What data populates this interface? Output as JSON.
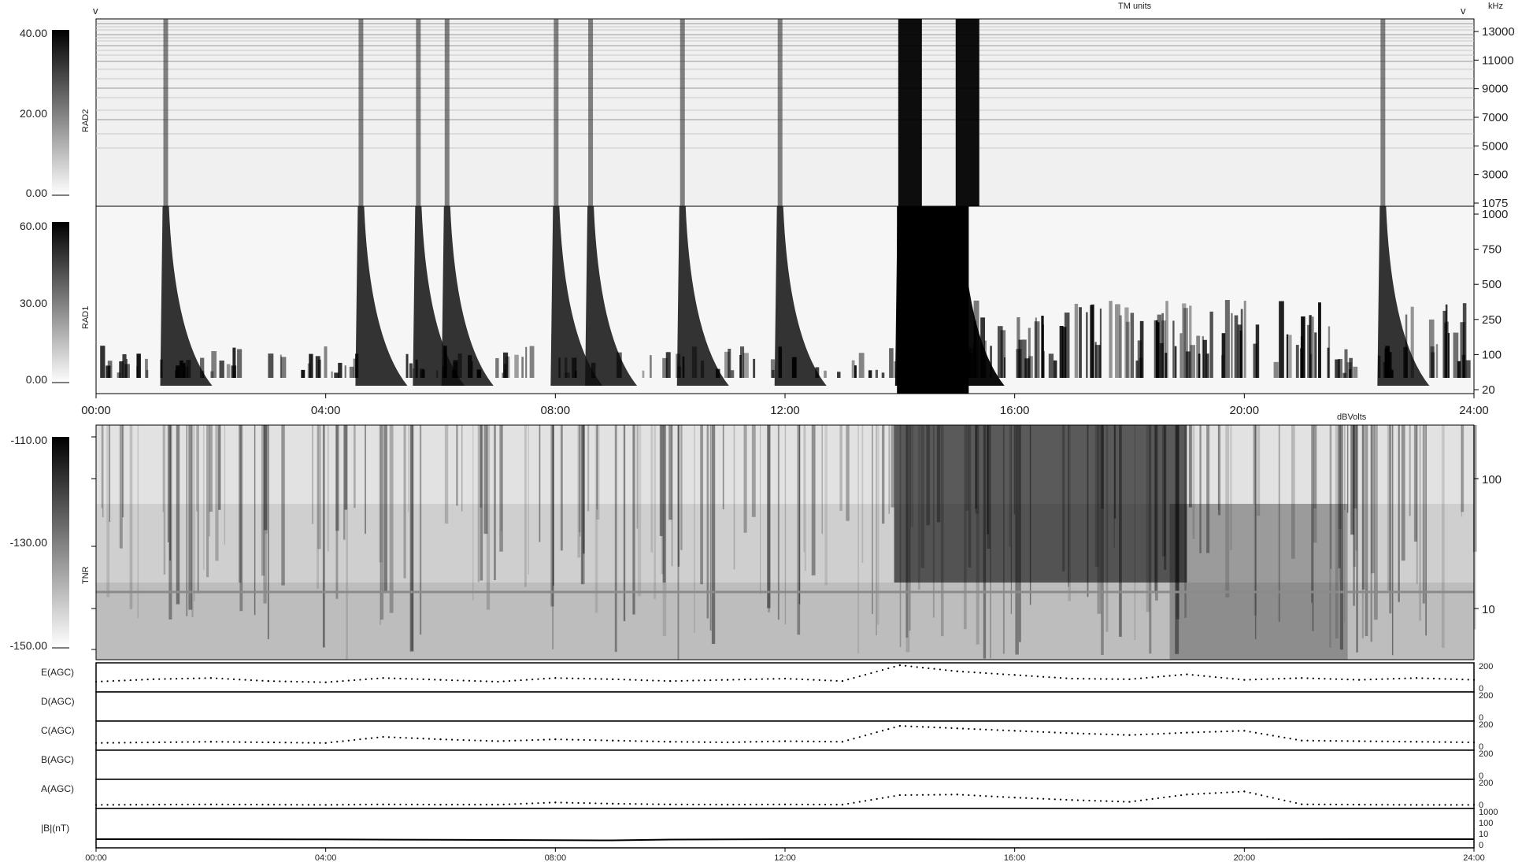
{
  "header": {
    "v_left": "v",
    "v_right": "v",
    "tm_units": "TM units",
    "khz": "kHz",
    "dbvolts": "dBVolts"
  },
  "time_ticks": [
    "00:00",
    "04:00",
    "08:00",
    "12:00",
    "16:00",
    "20:00",
    "24:00"
  ],
  "panels": {
    "rad2": {
      "label": "RAD2",
      "colorbar_ticks": [
        "40.00",
        "20.00",
        "0.00"
      ],
      "freq_ticks": [
        "13000",
        "11000",
        "9000",
        "7000",
        "5000",
        "3000",
        "1075"
      ]
    },
    "rad1": {
      "label": "RAD1",
      "colorbar_ticks": [
        "60.00",
        "30.00",
        "0.00"
      ],
      "freq_ticks": [
        "1000",
        "750",
        "500",
        "250",
        "100",
        "20"
      ]
    },
    "tnr": {
      "label": "TNR",
      "colorbar_ticks": [
        "-110.00",
        "-130.00",
        "-150.00"
      ],
      "freq_ticks": [
        "100",
        "10"
      ]
    }
  },
  "agc": [
    {
      "label": "E(AGC)",
      "ticks": [
        "200",
        "0"
      ]
    },
    {
      "label": "D(AGC)",
      "ticks": [
        "200",
        "0"
      ]
    },
    {
      "label": "C(AGC)",
      "ticks": [
        "200",
        "0"
      ]
    },
    {
      "label": "B(AGC)",
      "ticks": [
        "200",
        "0"
      ]
    },
    {
      "label": "A(AGC)",
      "ticks": [
        "200",
        "0"
      ]
    }
  ],
  "bfield": {
    "label": "|B|(nT)",
    "ticks": [
      "1000",
      "100",
      "10",
      "0"
    ]
  },
  "chart_data": {
    "type": "heatmap",
    "x_range": [
      "00:00",
      "24:00"
    ],
    "type_bursts_hours": [
      1.2,
      4.6,
      5.6,
      6.1,
      8.0,
      8.6,
      10.2,
      11.9,
      14.0,
      15.0,
      22.4
    ],
    "agc_series": [
      {
        "name": "E(AGC)",
        "ylim": [
          0,
          200
        ],
        "hours": [
          0,
          1,
          2,
          3,
          4,
          5,
          6,
          7,
          8,
          9,
          10,
          11,
          12,
          13,
          14,
          15,
          16,
          17,
          18,
          19,
          20,
          21,
          22,
          23,
          24
        ],
        "values": [
          65,
          85,
          95,
          70,
          60,
          95,
          80,
          65,
          95,
          85,
          70,
          80,
          90,
          70,
          200,
          150,
          120,
          90,
          85,
          125,
          80,
          95,
          80,
          95,
          80
        ]
      },
      {
        "name": "D(AGC)",
        "ylim": [
          0,
          200
        ],
        "hours": [],
        "values": []
      },
      {
        "name": "C(AGC)",
        "ylim": [
          0,
          200
        ],
        "hours": [
          0,
          1,
          2,
          3,
          4,
          5,
          6,
          7,
          8,
          9,
          10,
          11,
          12,
          13,
          14,
          15,
          16,
          17,
          18,
          19,
          20,
          21,
          22,
          23,
          24
        ],
        "values": [
          40,
          45,
          50,
          45,
          40,
          90,
          70,
          55,
          70,
          60,
          50,
          45,
          55,
          50,
          180,
          160,
          140,
          120,
          105,
          125,
          140,
          60,
          55,
          50,
          45
        ]
      },
      {
        "name": "B(AGC)",
        "ylim": [
          0,
          200
        ],
        "hours": [],
        "values": []
      },
      {
        "name": "A(AGC)",
        "ylim": [
          0,
          200
        ],
        "hours": [
          0,
          1,
          2,
          3,
          4,
          5,
          6,
          7,
          8,
          9,
          10,
          11,
          12,
          13,
          14,
          15,
          16,
          17,
          18,
          19,
          20,
          21,
          22,
          23,
          24
        ],
        "values": [
          10,
          12,
          14,
          12,
          10,
          14,
          12,
          12,
          30,
          20,
          14,
          12,
          14,
          12,
          90,
          95,
          70,
          50,
          35,
          95,
          120,
          15,
          12,
          10,
          10
        ]
      }
    ],
    "b_series": {
      "name": "|B|(nT)",
      "hours": [
        0,
        2,
        4,
        6,
        8,
        9,
        10,
        12,
        14,
        16,
        18,
        20,
        22,
        24
      ],
      "values": [
        20,
        20,
        19,
        17,
        15,
        14,
        18,
        20,
        20,
        19,
        19,
        19,
        20,
        20
      ]
    }
  }
}
